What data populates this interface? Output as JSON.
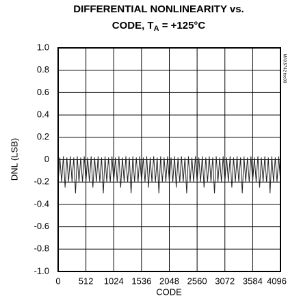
{
  "chart_data": {
    "type": "line",
    "title": {
      "line1": "DIFFERENTIAL NONLINEARITY vs.",
      "line2_start": "CODE, T",
      "subscript": "A",
      "line2_end": " = +125°C"
    },
    "annotation": "MAX5742 toc08",
    "x_label": "CODE",
    "y_label": "DNL (LSB)",
    "xlim": [
      0,
      4096
    ],
    "xticks": [
      0,
      512,
      1024,
      1536,
      2048,
      2560,
      3072,
      3584,
      4096
    ],
    "ylim": [
      -1,
      1
    ],
    "yticks": [
      {
        "value": 1,
        "label": "1.0"
      },
      0.8,
      0.6,
      0.4,
      0.2,
      0,
      -0.2,
      -0.4,
      -0.6,
      -0.8,
      {
        "value": -1,
        "label": "-1.0"
      }
    ],
    "grid": true,
    "series": [
      {
        "color": "#222222",
        "x": [
          0,
          32,
          64,
          96,
          128,
          160,
          192,
          224,
          256,
          288,
          320,
          352,
          384,
          416,
          448,
          480,
          512,
          544,
          576,
          608,
          640,
          672,
          704,
          736,
          768,
          800,
          832,
          864,
          896,
          928,
          960,
          992,
          1024,
          1056,
          1088,
          1120,
          1152,
          1184,
          1216,
          1248,
          1280,
          1312,
          1344,
          1376,
          1408,
          1440,
          1472,
          1504,
          1536,
          1568,
          1600,
          1632,
          1664,
          1696,
          1728,
          1760,
          1792,
          1824,
          1856,
          1888,
          1920,
          1952,
          1984,
          2016,
          2048,
          2080,
          2112,
          2144,
          2176,
          2208,
          2240,
          2272,
          2304,
          2336,
          2368,
          2400,
          2432,
          2464,
          2496,
          2528,
          2560,
          2592,
          2624,
          2656,
          2688,
          2720,
          2752,
          2784,
          2816,
          2848,
          2880,
          2912,
          2944,
          2976,
          3008,
          3040,
          3072,
          3104,
          3136,
          3168,
          3200,
          3232,
          3264,
          3296,
          3328,
          3360,
          3392,
          3424,
          3456,
          3488,
          3520,
          3552,
          3584,
          3616,
          3648,
          3680,
          3712,
          3744,
          3776,
          3808,
          3840,
          3872,
          3904,
          3936,
          3968,
          4000,
          4032,
          4064,
          4096
        ],
        "values": [
          -0.2,
          0.02,
          -0.2,
          0.03,
          -0.25,
          0.02,
          -0.2,
          0.03,
          -0.2,
          0.02,
          -0.3,
          0.03,
          -0.2,
          0.02,
          -0.2,
          0.03,
          -0.2,
          0.02,
          -0.2,
          0.03,
          -0.25,
          0.02,
          -0.2,
          0.03,
          -0.2,
          0.02,
          -0.3,
          0.03,
          -0.2,
          0.02,
          -0.2,
          0.03,
          -0.2,
          0.02,
          -0.2,
          0.03,
          -0.25,
          0.02,
          -0.2,
          0.03,
          -0.2,
          0.02,
          -0.3,
          0.03,
          -0.2,
          0.02,
          -0.2,
          0.03,
          -0.2,
          0.02,
          -0.2,
          0.03,
          -0.25,
          0.02,
          -0.2,
          0.03,
          -0.2,
          0.02,
          -0.3,
          0.03,
          -0.2,
          0.02,
          -0.2,
          0.03,
          -0.2,
          0.02,
          -0.2,
          0.03,
          -0.25,
          0.02,
          -0.2,
          0.03,
          -0.2,
          0.02,
          -0.3,
          0.03,
          -0.2,
          0.02,
          -0.2,
          0.03,
          -0.2,
          0.02,
          -0.2,
          0.03,
          -0.25,
          0.02,
          -0.2,
          0.03,
          -0.2,
          0.02,
          -0.3,
          0.03,
          -0.2,
          0.02,
          -0.2,
          0.03,
          -0.2,
          0.02,
          -0.2,
          0.03,
          -0.25,
          0.02,
          -0.2,
          0.03,
          -0.2,
          0.02,
          -0.3,
          0.03,
          -0.2,
          0.02,
          -0.2,
          0.03,
          -0.2,
          0.02,
          -0.2,
          0.03,
          -0.25,
          0.02,
          -0.2,
          0.03,
          -0.2,
          0.02,
          -0.3,
          0.03,
          -0.2,
          0.02,
          -0.2,
          0.03,
          -0.2
        ]
      }
    ]
  }
}
